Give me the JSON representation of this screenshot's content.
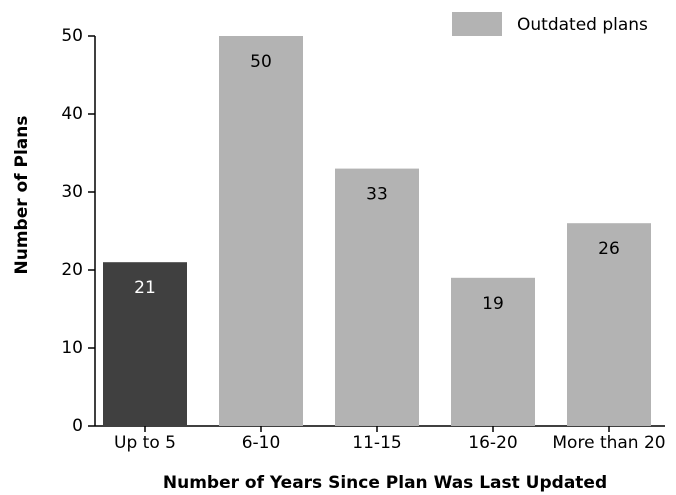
{
  "chart_data": {
    "type": "bar",
    "x_label": "Number of Years Since Plan Was Last Updated",
    "y_label": "Number of Plans",
    "categories": [
      "Up to 5",
      "6-10",
      "11-15",
      "16-20",
      "More than 20"
    ],
    "values": [
      21,
      50,
      33,
      19,
      26
    ],
    "colors": [
      "#404040",
      "#b3b3b3",
      "#b3b3b3",
      "#b3b3b3",
      "#b3b3b3"
    ],
    "legend": {
      "label": "Outdated plans",
      "color": "#b3b3b3",
      "position": "upper right"
    },
    "ylim": [
      0,
      50
    ],
    "yticks": [
      0,
      10,
      20,
      30,
      40,
      50
    ],
    "grid": false
  }
}
